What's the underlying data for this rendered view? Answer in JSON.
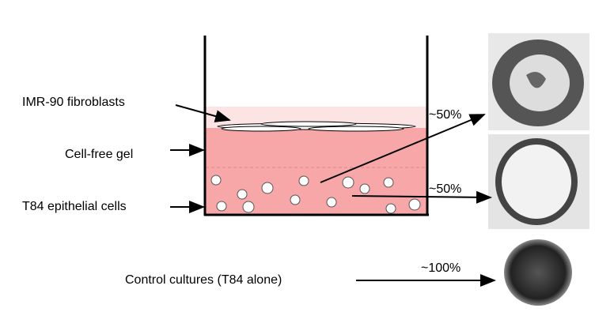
{
  "labels": {
    "fibroblasts": "IMR-90 fibroblasts",
    "gel": "Cell-free gel",
    "epithelial": "T84  epithelial cells",
    "control": "Control cultures  (T84 alone)"
  },
  "outcomes": {
    "upper": "~50%",
    "lower": "~50%",
    "control": "~100%"
  }
}
